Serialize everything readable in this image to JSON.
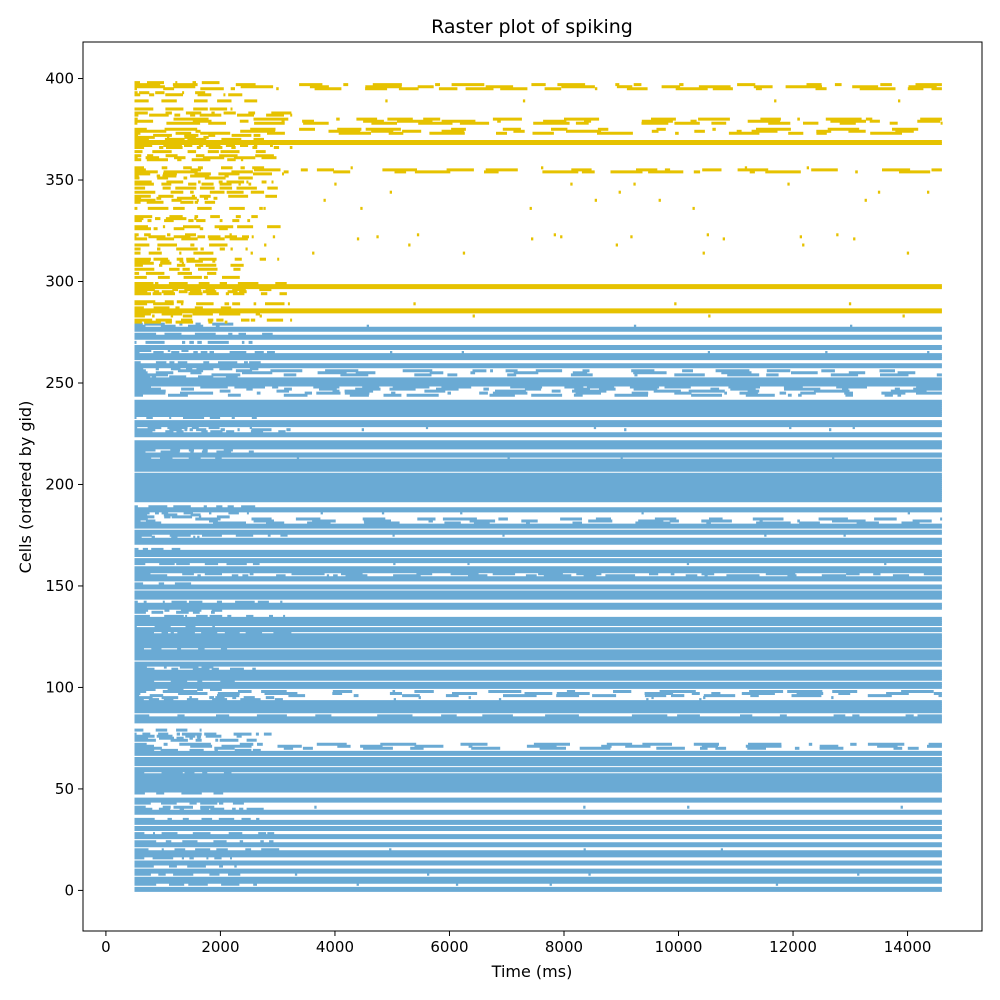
{
  "chart_data": {
    "type": "scatter",
    "title": "Raster plot of spiking",
    "xlabel": "Time (ms)",
    "ylabel": "Cells (ordered by gid)",
    "xlim": [
      -400,
      15300
    ],
    "ylim": [
      -20,
      418
    ],
    "x_ticks": [
      0,
      2000,
      4000,
      6000,
      8000,
      10000,
      12000,
      14000
    ],
    "y_ticks": [
      0,
      50,
      100,
      150,
      200,
      250,
      300,
      350,
      400
    ],
    "grid": false,
    "legend": "none",
    "colors": {
      "population_a": "#6aaad4",
      "population_b": "#e6c200"
    },
    "series": [
      {
        "color": "#6aaad4",
        "gid_range": [
          0,
          279
        ],
        "t_start": 500,
        "t_end": 14600,
        "dense_rows": [
          [
            0,
            1
          ],
          [
            4,
            6
          ],
          [
            9,
            10
          ],
          [
            13,
            14
          ],
          [
            17,
            19
          ],
          [
            22,
            23
          ],
          [
            26,
            27
          ],
          [
            30,
            31
          ],
          [
            33,
            34
          ],
          [
            38,
            39
          ],
          [
            44,
            45
          ],
          [
            49,
            55
          ],
          [
            56,
            57
          ],
          [
            59,
            60
          ],
          [
            62,
            65
          ],
          [
            67,
            68
          ],
          [
            83,
            85
          ],
          [
            88,
            93
          ],
          [
            100,
            102
          ],
          [
            104,
            108
          ],
          [
            111,
            112
          ],
          [
            114,
            118
          ],
          [
            120,
            126
          ],
          [
            128,
            129
          ],
          [
            131,
            134
          ],
          [
            139,
            141
          ],
          [
            144,
            147
          ],
          [
            149,
            150
          ],
          [
            153,
            154
          ],
          [
            157,
            159
          ],
          [
            162,
            163
          ],
          [
            165,
            167
          ],
          [
            171,
            173
          ],
          [
            176,
            177
          ],
          [
            179,
            180
          ],
          [
            187,
            188
          ],
          [
            192,
            205
          ],
          [
            207,
            212
          ],
          [
            214,
            215
          ],
          [
            218,
            221
          ],
          [
            224,
            225
          ],
          [
            229,
            231
          ],
          [
            234,
            241
          ],
          [
            249,
            252
          ],
          [
            258,
            259
          ],
          [
            262,
            264
          ],
          [
            267,
            268
          ],
          [
            272,
            273
          ],
          [
            276,
            277
          ]
        ],
        "sparse_rows": [
          [
            70,
            72
          ],
          [
            85,
            86
          ],
          [
            96,
            98
          ],
          [
            154,
            157
          ],
          [
            181,
            183
          ],
          [
            244,
            248
          ],
          [
            254,
            256
          ]
        ],
        "early_only_until": 1500
      },
      {
        "color": "#e6c200",
        "gid_range": [
          280,
          399
        ],
        "t_start": 500,
        "t_end": 14600,
        "dense_rows": [
          [
            285,
            286
          ],
          [
            297,
            298
          ],
          [
            368,
            369
          ]
        ],
        "sparse_rows": [
          [
            378,
            380
          ],
          [
            373,
            375
          ],
          [
            395,
            397
          ],
          [
            354,
            355
          ]
        ],
        "early_only_until": 1500
      }
    ]
  }
}
